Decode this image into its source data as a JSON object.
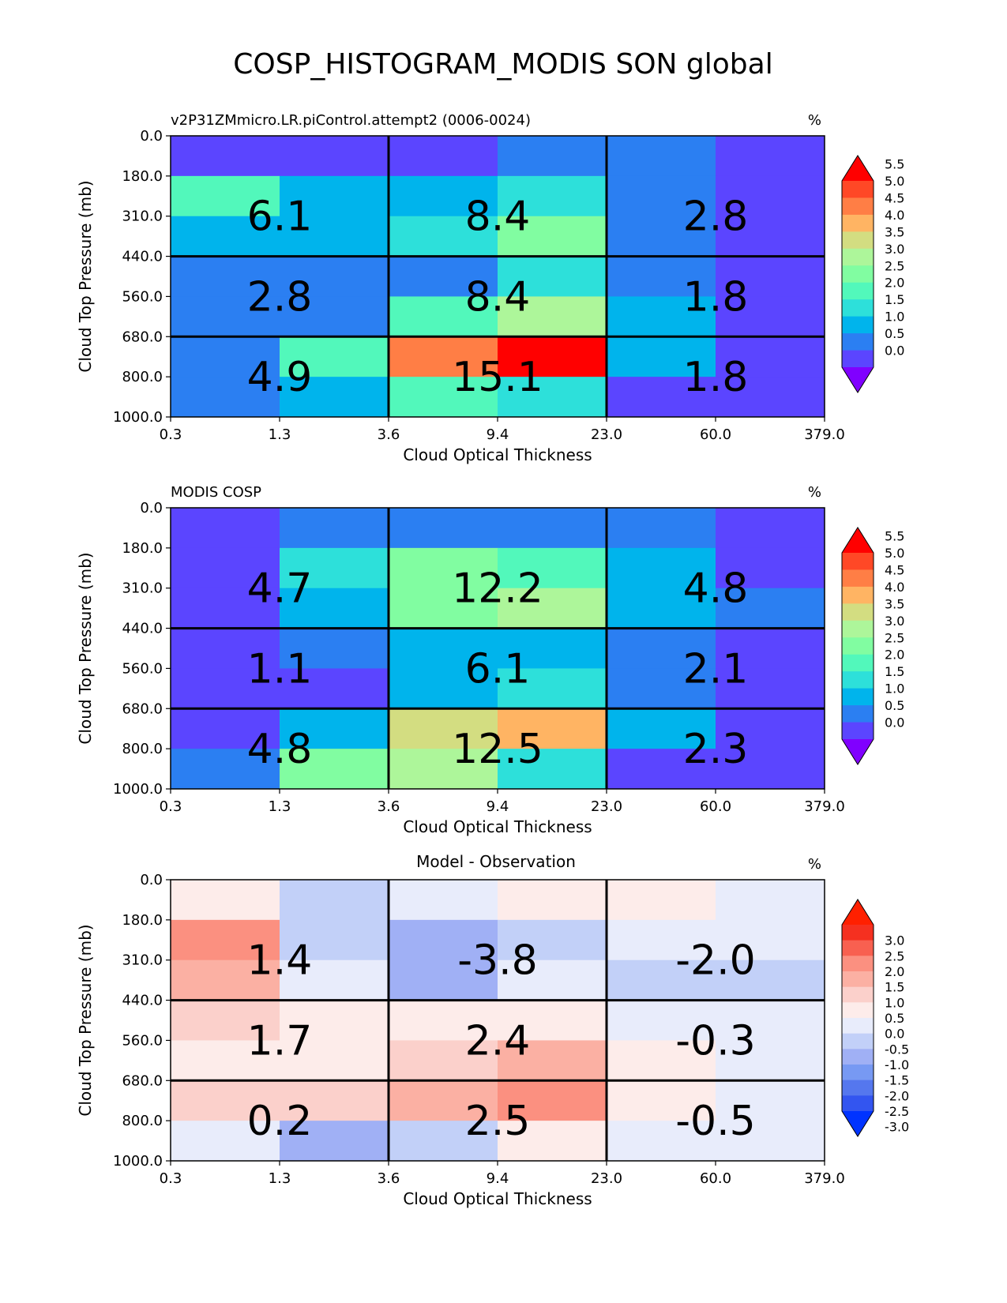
{
  "figure_title": "COSP_HISTOGRAM_MODIS SON global",
  "colors": {
    "cmap_seq": [
      "#8000ff",
      "#5b45ff",
      "#2b7ff2",
      "#00b4ec",
      "#2de0da",
      "#52f8bb",
      "#81fda1",
      "#adf69a",
      "#d3dd81",
      "#ffb463",
      "#ff7e45",
      "#ff4826",
      "#ff0000"
    ],
    "cmap_diff": [
      "#0033ff",
      "#3355f0",
      "#5577ee",
      "#7799f3",
      "#a0b0f5",
      "#c2d0f8",
      "#e8ecfb",
      "#fdecea",
      "#fbd0cb",
      "#fbb0a3",
      "#fb9080",
      "#f86050",
      "#f53020",
      "#ff2000"
    ]
  },
  "chart_data": [
    {
      "type": "heatmap",
      "title": "",
      "subtitle_left": "v2P31ZMmicro.LR.piControl.attempt2 (0006-0024)",
      "subtitle_right": "%",
      "xlabel": "Cloud Optical Thickness",
      "ylabel": "Cloud Top Pressure (mb)",
      "x_ticks": [
        "0.3",
        "1.3",
        "3.6",
        "9.4",
        "23.0",
        "60.0",
        "379.0"
      ],
      "y_ticks": [
        "0.0",
        "180.0",
        "310.0",
        "440.0",
        "560.0",
        "680.0",
        "800.0",
        "1000.0"
      ],
      "colorbar": {
        "levels": [
          -0.5,
          0.0,
          0.5,
          1.0,
          1.5,
          2.0,
          2.5,
          3.0,
          3.5,
          4.0,
          4.5,
          5.0,
          5.5,
          6.0
        ],
        "tick_labels": [
          "0.0",
          "0.5",
          "1.0",
          "1.5",
          "2.0",
          "2.5",
          "3.0",
          "3.5",
          "4.0",
          "4.5",
          "5.0",
          "5.5"
        ],
        "extend": "both",
        "cmap": "cmap_seq"
      },
      "cells": [
        [
          0.2,
          0.2,
          0.2,
          0.9,
          0.9,
          0.2
        ],
        [
          2.3,
          1.3,
          1.3,
          1.9,
          0.9,
          0.2
        ],
        [
          1.3,
          1.3,
          1.9,
          2.6,
          0.9,
          0.2
        ],
        [
          0.8,
          0.8,
          0.8,
          1.9,
          0.9,
          0.2
        ],
        [
          0.8,
          0.8,
          2.3,
          3.3,
          1.3,
          0.2
        ],
        [
          0.8,
          2.3,
          4.8,
          5.7,
          1.3,
          0.2
        ],
        [
          0.8,
          1.3,
          2.3,
          1.9,
          0.2,
          0.2
        ]
      ],
      "box_values": [
        [
          "6.1",
          "8.4",
          "2.8"
        ],
        [
          "2.8",
          "8.4",
          "1.8"
        ],
        [
          "4.9",
          "15.1",
          "1.8"
        ]
      ]
    },
    {
      "type": "heatmap",
      "title": "",
      "subtitle_left": "MODIS COSP",
      "subtitle_right": "%",
      "xlabel": "Cloud Optical Thickness",
      "ylabel": "Cloud Top Pressure (mb)",
      "x_ticks": [
        "0.3",
        "1.3",
        "3.6",
        "9.4",
        "23.0",
        "60.0",
        "379.0"
      ],
      "y_ticks": [
        "0.0",
        "180.0",
        "310.0",
        "440.0",
        "560.0",
        "680.0",
        "800.0",
        "1000.0"
      ],
      "colorbar": {
        "levels": [
          -0.5,
          0.0,
          0.5,
          1.0,
          1.5,
          2.0,
          2.5,
          3.0,
          3.5,
          4.0,
          4.5,
          5.0,
          5.5,
          6.0
        ],
        "tick_labels": [
          "0.0",
          "0.5",
          "1.0",
          "1.5",
          "2.0",
          "2.5",
          "3.0",
          "3.5",
          "4.0",
          "4.5",
          "5.0",
          "5.5"
        ],
        "extend": "both",
        "cmap": "cmap_seq"
      },
      "cells": [
        [
          0.2,
          0.8,
          0.8,
          0.8,
          0.8,
          0.2
        ],
        [
          0.2,
          1.9,
          2.6,
          2.3,
          1.3,
          0.2
        ],
        [
          0.2,
          1.3,
          2.6,
          3.3,
          1.3,
          0.8
        ],
        [
          0.2,
          0.8,
          1.3,
          1.3,
          0.8,
          0.2
        ],
        [
          0.2,
          0.2,
          1.3,
          1.9,
          0.8,
          0.2
        ],
        [
          0.2,
          1.3,
          3.8,
          4.3,
          1.3,
          0.2
        ],
        [
          0.8,
          2.6,
          3.3,
          1.9,
          0.2,
          0.2
        ]
      ],
      "box_values": [
        [
          "4.7",
          "12.2",
          "4.8"
        ],
        [
          "1.1",
          "6.1",
          "2.1"
        ],
        [
          "4.8",
          "12.5",
          "2.3"
        ]
      ]
    },
    {
      "type": "heatmap",
      "title": "Model - Observation",
      "subtitle_left": "",
      "subtitle_right": "%",
      "xlabel": "Cloud Optical Thickness",
      "ylabel": "Cloud Top Pressure (mb)",
      "x_ticks": [
        "0.3",
        "1.3",
        "3.6",
        "9.4",
        "23.0",
        "60.0",
        "379.0"
      ],
      "y_ticks": [
        "0.0",
        "180.0",
        "310.0",
        "440.0",
        "560.0",
        "680.0",
        "800.0",
        "1000.0"
      ],
      "colorbar": {
        "levels": [
          -3.5,
          -3.0,
          -2.5,
          -2.0,
          -1.5,
          -1.0,
          -0.5,
          0.0,
          0.5,
          1.0,
          1.5,
          2.0,
          2.5,
          3.0,
          3.5
        ],
        "tick_labels": [
          "3.0",
          "2.5",
          "2.0",
          "1.5",
          "1.0",
          "0.5",
          "0.0",
          "-0.5",
          "-1.0",
          "-1.5",
          "-2.0",
          "-2.5",
          "-3.0"
        ],
        "extend": "both",
        "cmap": "cmap_diff"
      },
      "cells": [
        [
          0.2,
          -0.7,
          -0.2,
          0.2,
          0.2,
          -0.2
        ],
        [
          1.7,
          -0.7,
          -1.2,
          -0.7,
          -0.2,
          -0.2
        ],
        [
          1.2,
          -0.2,
          -1.2,
          -0.2,
          -0.7,
          -0.7
        ],
        [
          0.7,
          0.2,
          0.2,
          0.2,
          -0.2,
          -0.2
        ],
        [
          0.2,
          0.2,
          0.7,
          1.2,
          0.2,
          -0.2
        ],
        [
          0.7,
          0.7,
          1.2,
          1.7,
          0.2,
          -0.2
        ],
        [
          -0.2,
          -1.2,
          -0.7,
          0.2,
          -0.2,
          -0.2
        ]
      ],
      "box_values": [
        [
          "1.4",
          "-3.8",
          "-2.0"
        ],
        [
          "1.7",
          "2.4",
          "-0.3"
        ],
        [
          "0.2",
          "2.5",
          "-0.5"
        ]
      ]
    }
  ]
}
